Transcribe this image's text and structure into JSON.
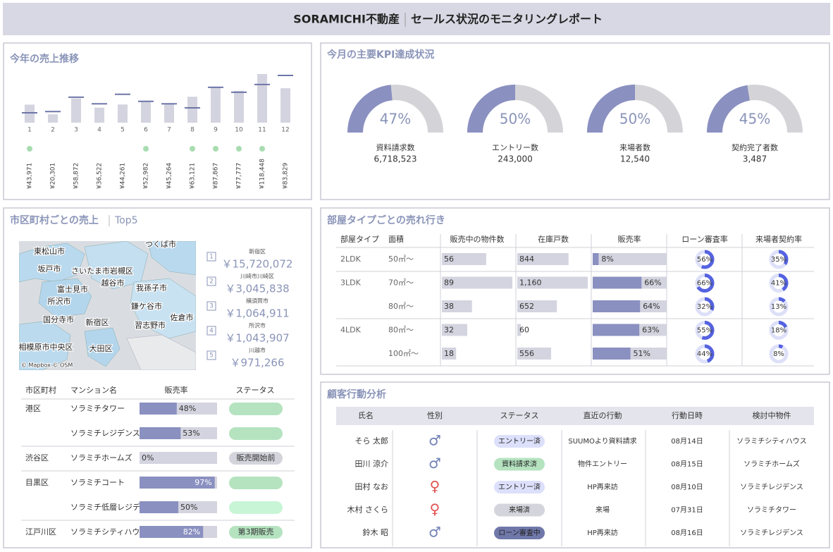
{
  "header": {
    "brand": "SORAMICHI不動産",
    "title": "セールス状況のモニタリングレポート"
  },
  "monthly_sales": {
    "title": "今年の売上推移",
    "chart_data": {
      "type": "bar",
      "categories": [
        "1",
        "2",
        "3",
        "4",
        "5",
        "6",
        "7",
        "8",
        "9",
        "10",
        "11",
        "12"
      ],
      "values": [
        43971,
        20301,
        58872,
        36522,
        44261,
        52982,
        45264,
        63121,
        87867,
        77777,
        118448,
        83829
      ],
      "value_labels": [
        "¥43,971",
        "¥20,301",
        "¥58,872",
        "¥36,522",
        "¥44,261",
        "¥52,982",
        "¥45,264",
        "¥63,121",
        "¥87,867",
        "¥77,777",
        "¥118,448",
        "¥83,829"
      ],
      "targets": [
        24000,
        27000,
        62000,
        46000,
        69000,
        52000,
        46000,
        36000,
        86000,
        74000,
        93000,
        115000
      ],
      "bar_color": "#d4d4e0",
      "target_color": "#6e76a8",
      "achieved_color": "#a8dcb0"
    }
  },
  "kpi": {
    "title": "今月の主要KPI達成状況",
    "fill_color": "#8a90c0",
    "track_color": "#d4d4d8",
    "items": [
      {
        "rate": 47,
        "rate_label": "47%",
        "name": "資料請求数",
        "count": 6718523,
        "count_label": "6,718,523"
      },
      {
        "rate": 50,
        "rate_label": "50%",
        "name": "エントリー数",
        "count": 243000,
        "count_label": "243,000"
      },
      {
        "rate": 50,
        "rate_label": "50%",
        "name": "来場者数",
        "count": 12540,
        "count_label": "12,540"
      },
      {
        "rate": 45,
        "rate_label": "45%",
        "name": "契約完了者数",
        "count": 3487,
        "count_label": "3,487"
      }
    ]
  },
  "area_sales": {
    "title": "市区町村ごとの売上",
    "subtitle": "Top5",
    "map": {
      "labels": [
        "つくば市",
        "東松山市",
        "坂戸市",
        "さいたま市岩槻区",
        "越谷市",
        "富士見市",
        "我孫子市",
        "所沢市",
        "鎌ケ谷市",
        "国分寺市",
        "新宿区",
        "習志野市",
        "佐倉市",
        "相模原市中央区",
        "大田区"
      ],
      "credit": "© Mapbox © OSM"
    },
    "top5": [
      {
        "rank": 1,
        "city": "新宿区",
        "sales": 15720072,
        "sales_label": "￥15,720,072"
      },
      {
        "rank": 2,
        "city": "川崎市川崎区",
        "sales": 3045838,
        "sales_label": "￥3,045,838"
      },
      {
        "rank": 3,
        "city": "横須賀市",
        "sales": 1064911,
        "sales_label": "￥1,064,911"
      },
      {
        "rank": 4,
        "city": "所沢市",
        "sales": 1043907,
        "sales_label": "￥1,043,907"
      },
      {
        "rank": 5,
        "city": "川越市",
        "sales": 971266,
        "sales_label": "￥971,266"
      }
    ],
    "table": {
      "headers": [
        "市区町村",
        "マンション名",
        "販売率",
        "ステータス"
      ],
      "bar_color": "#8a90c0",
      "track_color": "#d4d4e0",
      "rows": [
        {
          "ward": "港区",
          "name": "ソラミチタワー",
          "rate": 48,
          "rate_label": "48%",
          "status": null,
          "status_color": "#b5e3c0"
        },
        {
          "ward": null,
          "name": "ソラミチレジデンス",
          "rate": 53,
          "rate_label": "53%",
          "status": null,
          "status_color": "#b5e3c0"
        },
        {
          "ward": "渋谷区",
          "name": "ソラミチホームズ",
          "rate": 0,
          "rate_label": "0%",
          "status": "販売開始前",
          "status_color": "#d4d4dc"
        },
        {
          "ward": "目黒区",
          "name": "ソラミチコート",
          "rate": 97,
          "rate_label": "97%",
          "status": null,
          "status_color": "#b5e3c0"
        },
        {
          "ward": null,
          "name": "ソラミチ低層レジデ..",
          "rate": 50,
          "rate_label": "50%",
          "status": null,
          "status_color": "#c8f5d6"
        },
        {
          "ward": "江戸川区",
          "name": "ソラミチシティハウス",
          "rate": 82,
          "rate_label": "82%",
          "status": "第3期販売",
          "status_color": "#b5e3c0"
        }
      ]
    }
  },
  "room_types": {
    "title": "部屋タイプごとの売れ行き",
    "headers": [
      "部屋タイプ",
      "面積",
      "販売中の物件数",
      "在庫戸数",
      "販売率",
      "ローン審査率",
      "来場者契約率"
    ],
    "bar_color": "#d4d4e0",
    "rate_color": "#8a90c0",
    "ring_color": "#5563e0",
    "ring_track_color": "#dde0f8",
    "rows": [
      {
        "type": "2LDK",
        "area": "50㎡〜",
        "listings": 56,
        "stock": 844,
        "sales_rate": 8,
        "sales_rate_label": "8%",
        "loan_rate": 56,
        "loan_rate_label": "56%",
        "visit_rate": 35,
        "visit_rate_label": "35%"
      },
      {
        "type": "3LDK",
        "area": "70㎡〜",
        "listings": 89,
        "stock": 1160,
        "stock_label": "1,160",
        "sales_rate": 66,
        "sales_rate_label": "66%",
        "loan_rate": 66,
        "loan_rate_label": "66%",
        "visit_rate": 41,
        "visit_rate_label": "41%"
      },
      {
        "type": null,
        "area": "80㎡〜",
        "listings": 38,
        "stock": 652,
        "sales_rate": 64,
        "sales_rate_label": "64%",
        "loan_rate": 32,
        "loan_rate_label": "32%",
        "visit_rate": 13,
        "visit_rate_label": "13%"
      },
      {
        "type": "4LDK",
        "area": "80㎡〜",
        "listings": 32,
        "stock": 60,
        "sales_rate": 63,
        "sales_rate_label": "63%",
        "loan_rate": 55,
        "loan_rate_label": "55%",
        "visit_rate": 18,
        "visit_rate_label": "18%"
      },
      {
        "type": null,
        "area": "100㎡〜",
        "listings": 18,
        "stock": 556,
        "sales_rate": 51,
        "sales_rate_label": "51%",
        "loan_rate": 44,
        "loan_rate_label": "44%",
        "visit_rate": 8,
        "visit_rate_label": "8%"
      }
    ]
  },
  "customers": {
    "title": "顧客行動分析",
    "headers": [
      "氏名",
      "性別",
      "ステータス",
      "直近の行動",
      "行動日時",
      "検討中物件"
    ],
    "rows": [
      {
        "name": "そら 太郎",
        "gender": "♂",
        "gender_color": "#6f7fb5",
        "status": "エントリー済",
        "status_color": "#dde0fb",
        "action": "SUUMOより資料請求",
        "date": "08月14日",
        "property": "ソラミチシティハウス"
      },
      {
        "name": "田川 涼介",
        "gender": "♂",
        "gender_color": "#6f7fb5",
        "status": "資料請求済",
        "status_color": "#b5e3c0",
        "action": "物件エントリー",
        "date": "08月15日",
        "property": "ソラミチホームズ"
      },
      {
        "name": "田村 なお",
        "gender": "♀",
        "gender_color": "#e05050",
        "status": "エントリー済",
        "status_color": "#dde0fb",
        "action": "HP再来訪",
        "date": "08月10日",
        "property": "ソラミチレジデンス"
      },
      {
        "name": "木村 さくら",
        "gender": "♀",
        "gender_color": "#e05050",
        "status": "来場済",
        "status_color": "#d4d4dc",
        "action": "来場",
        "date": "07月31日",
        "property": "ソラミチタワー"
      },
      {
        "name": "鈴木 昭",
        "gender": "♂",
        "gender_color": "#6f7fb5",
        "status": "ローン審査中",
        "status_color": "#7078aa",
        "action": "HP再来訪",
        "date": "08月16日",
        "property": "ソラミチレジデンス"
      }
    ]
  }
}
